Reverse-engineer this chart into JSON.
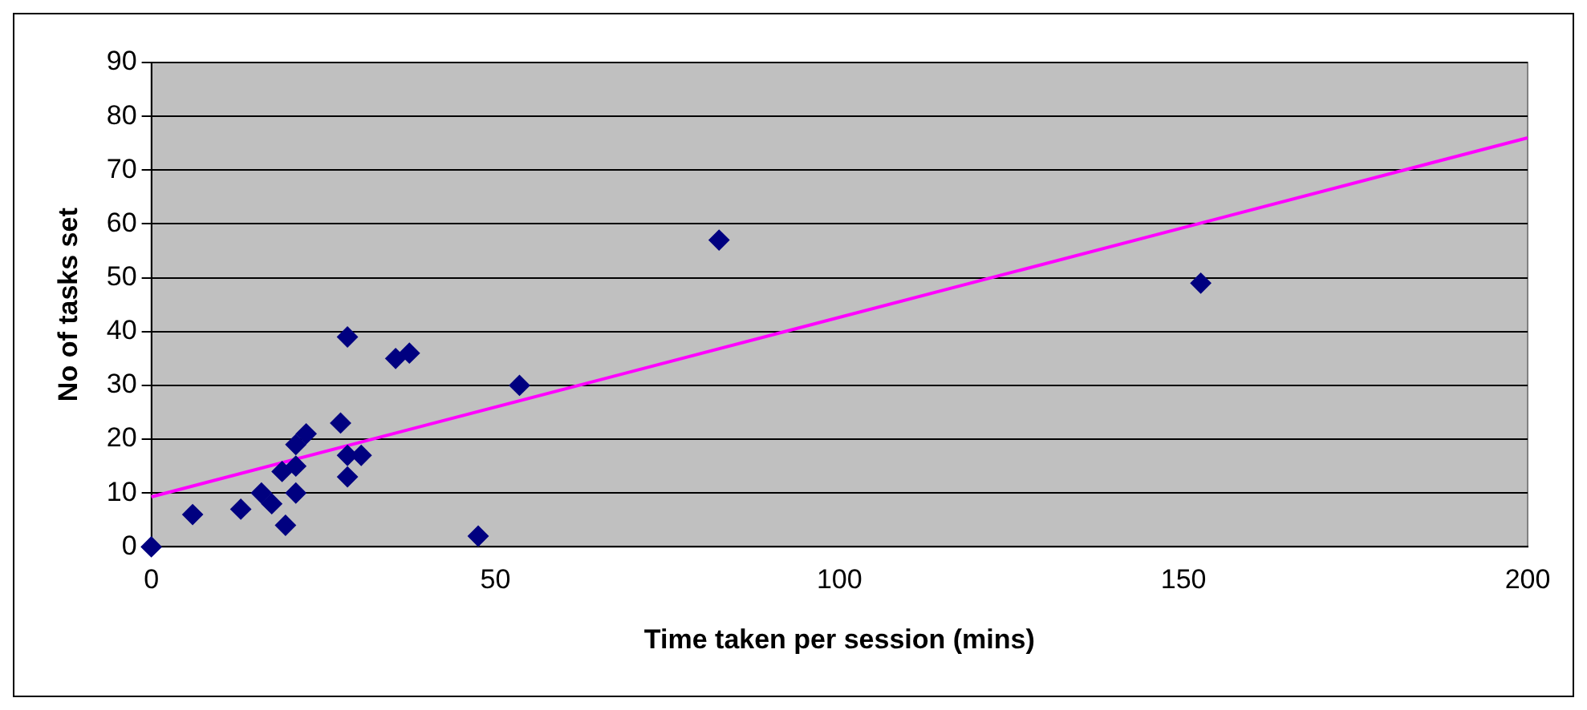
{
  "chart_data": {
    "type": "scatter",
    "xlabel": "Time taken per session (mins)",
    "ylabel": "No of tasks set",
    "xlim": [
      0,
      200
    ],
    "xticks": [
      0,
      50,
      100,
      150,
      200
    ],
    "ylim": [
      0,
      90
    ],
    "yticks": [
      0,
      10,
      20,
      30,
      40,
      50,
      60,
      70,
      80,
      90
    ],
    "grid": "y",
    "legend": false,
    "marker": "diamond",
    "series": [
      {
        "color": "#000080",
        "x": [
          0,
          6,
          13,
          16,
          17.5,
          19.5,
          19,
          21,
          21,
          21,
          22.5,
          27.5,
          28.5,
          28.5,
          28.5,
          30.5,
          35.5,
          37.5,
          47.5,
          53.5,
          82.5,
          152.5
        ],
        "values": [
          0,
          6,
          7,
          10,
          8,
          4,
          14,
          15,
          10,
          19,
          21,
          23,
          39,
          17,
          13,
          17,
          35,
          36,
          2,
          30,
          57,
          49
        ]
      },
      {
        "type": "line",
        "color": "#ff00ff",
        "x": [
          0,
          200
        ],
        "values": [
          9.3,
          76
        ],
        "marker": "none",
        "line_style": "solid"
      }
    ]
  }
}
